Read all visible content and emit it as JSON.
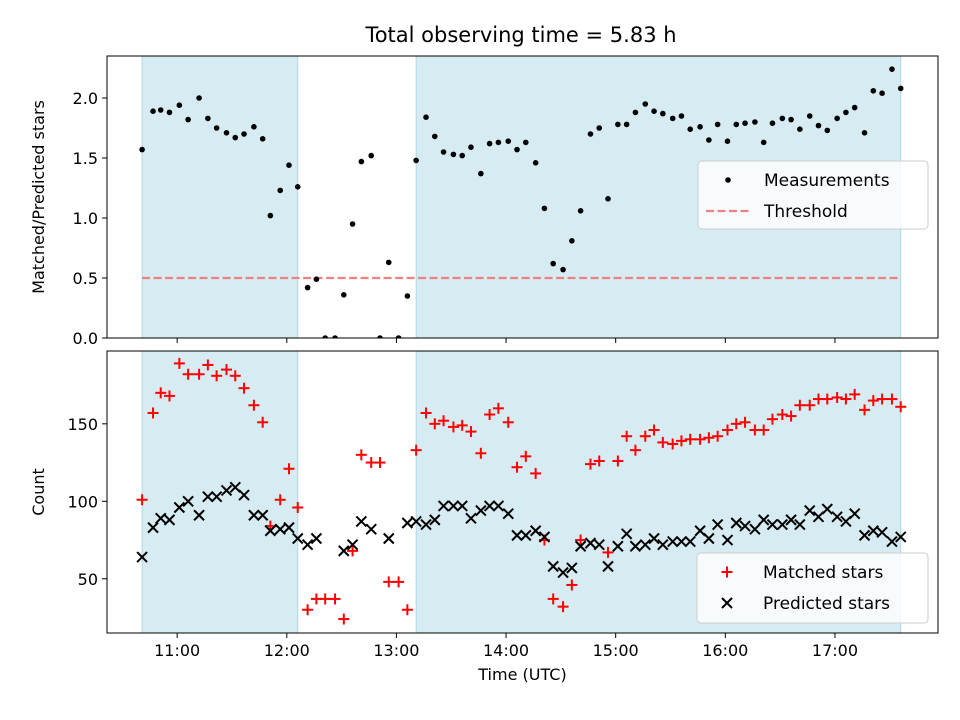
{
  "title": "Total observing time = 5.83 h",
  "colors": {
    "shade": "#add8e6",
    "measurement": "#000000",
    "threshold": "#f08080",
    "matched": "#ff0000",
    "predicted": "#000000"
  },
  "chart_data": [
    {
      "type": "scatter",
      "panel": "top",
      "xlabel": "",
      "ylabel": "Matched/Predicted stars",
      "xlim": [
        10.36,
        17.94
      ],
      "ylim": [
        0,
        2.35
      ],
      "yticks": [
        0.0,
        0.5,
        1.0,
        1.5,
        2.0
      ],
      "ytick_labels": [
        "0.0",
        "0.5",
        "1.0",
        "1.5",
        "2.0"
      ],
      "xticks": [
        11,
        12,
        13,
        14,
        15,
        16,
        17
      ],
      "shaded_intervals": [
        [
          10.68,
          12.1
        ],
        [
          13.18,
          17.6
        ]
      ],
      "threshold": 0.5,
      "threshold_x_range": [
        10.68,
        17.6
      ],
      "legend": {
        "position": "center-right",
        "entries": [
          {
            "label": "Measurements",
            "marker": "dot"
          },
          {
            "label": "Threshold",
            "marker": "dashed-line"
          }
        ]
      },
      "series": [
        {
          "name": "Measurements",
          "x": [
            10.68,
            10.78,
            10.85,
            10.93,
            11.02,
            11.1,
            11.2,
            11.28,
            11.36,
            11.45,
            11.53,
            11.61,
            11.7,
            11.78,
            11.85,
            11.94,
            12.02,
            12.1,
            12.19,
            12.27,
            12.35,
            12.44,
            12.52,
            12.6,
            12.68,
            12.77,
            12.85,
            12.93,
            13.02,
            13.1,
            13.18,
            13.27,
            13.35,
            13.43,
            13.52,
            13.6,
            13.68,
            13.77,
            13.85,
            13.93,
            14.02,
            14.1,
            14.18,
            14.27,
            14.35,
            14.43,
            14.52,
            14.6,
            14.68,
            14.77,
            14.85,
            14.93,
            15.02,
            15.1,
            15.18,
            15.27,
            15.35,
            15.43,
            15.52,
            15.6,
            15.68,
            15.77,
            15.85,
            15.93,
            16.02,
            16.1,
            16.18,
            16.27,
            16.35,
            16.43,
            16.52,
            16.6,
            16.68,
            16.77,
            16.85,
            16.93,
            17.02,
            17.1,
            17.18,
            17.27,
            17.35,
            17.43,
            17.52,
            17.6
          ],
          "y": [
            1.57,
            1.89,
            1.9,
            1.88,
            1.94,
            1.82,
            2.0,
            1.83,
            1.75,
            1.71,
            1.67,
            1.7,
            1.76,
            1.66,
            1.02,
            1.23,
            1.44,
            1.26,
            0.42,
            0.49,
            0.0,
            0.0,
            0.36,
            0.95,
            1.47,
            1.52,
            0.0,
            0.63,
            0.0,
            0.35,
            1.48,
            1.84,
            1.68,
            1.55,
            1.53,
            1.52,
            1.59,
            1.37,
            1.62,
            1.63,
            1.64,
            1.57,
            1.63,
            1.46,
            1.08,
            0.62,
            0.57,
            0.81,
            1.06,
            1.7,
            1.75,
            1.16,
            1.78,
            1.78,
            1.88,
            1.95,
            1.89,
            1.87,
            1.83,
            1.85,
            1.74,
            1.76,
            1.65,
            1.78,
            1.64,
            1.78,
            1.79,
            1.8,
            1.63,
            1.79,
            1.83,
            1.82,
            1.74,
            1.85,
            1.77,
            1.73,
            1.83,
            1.88,
            1.92,
            1.71,
            2.06,
            2.04,
            2.24,
            2.08
          ]
        }
      ]
    },
    {
      "type": "scatter",
      "panel": "bottom",
      "xlabel": "Time (UTC)",
      "ylabel": "Count",
      "xlim": [
        10.36,
        17.94
      ],
      "ylim": [
        15,
        197
      ],
      "yticks": [
        50,
        100,
        150
      ],
      "ytick_labels": [
        "50",
        "100",
        "150"
      ],
      "xticks": [
        11,
        12,
        13,
        14,
        15,
        16,
        17
      ],
      "xtick_labels": [
        "11:00",
        "12:00",
        "13:00",
        "14:00",
        "15:00",
        "16:00",
        "17:00"
      ],
      "shaded_intervals": [
        [
          10.68,
          12.1
        ],
        [
          13.18,
          17.6
        ]
      ],
      "legend": {
        "position": "bottom-right",
        "entries": [
          {
            "label": "Matched stars",
            "marker": "plus"
          },
          {
            "label": "Predicted stars",
            "marker": "x"
          }
        ]
      },
      "series": [
        {
          "name": "Matched stars",
          "x": [
            10.68,
            10.78,
            10.85,
            10.93,
            11.02,
            11.1,
            11.2,
            11.28,
            11.36,
            11.45,
            11.53,
            11.61,
            11.7,
            11.78,
            11.85,
            11.94,
            12.02,
            12.1,
            12.19,
            12.27,
            12.35,
            12.44,
            12.52,
            12.6,
            12.68,
            12.77,
            12.85,
            12.93,
            13.02,
            13.1,
            13.18,
            13.27,
            13.35,
            13.43,
            13.52,
            13.6,
            13.68,
            13.77,
            13.85,
            13.93,
            14.02,
            14.1,
            14.18,
            14.27,
            14.35,
            14.43,
            14.52,
            14.6,
            14.68,
            14.77,
            14.85,
            14.93,
            15.02,
            15.1,
            15.18,
            15.27,
            15.35,
            15.43,
            15.52,
            15.6,
            15.68,
            15.77,
            15.85,
            15.93,
            16.02,
            16.1,
            16.18,
            16.27,
            16.35,
            16.43,
            16.52,
            16.6,
            16.68,
            16.77,
            16.85,
            16.93,
            17.02,
            17.1,
            17.18,
            17.27,
            17.35,
            17.43,
            17.52,
            17.6
          ],
          "y": [
            101,
            157,
            170,
            168,
            189,
            182,
            182,
            188,
            181,
            185,
            181,
            173,
            162,
            151,
            84,
            101,
            121,
            96,
            30,
            37,
            37,
            37,
            24,
            68,
            130,
            125,
            125,
            48,
            48,
            30,
            133,
            157,
            150,
            152,
            148,
            149,
            145,
            131,
            156,
            160,
            151,
            122,
            129,
            118,
            75,
            37,
            32,
            46,
            75,
            124,
            126,
            67,
            126,
            142,
            133,
            142,
            146,
            138,
            137,
            139,
            140,
            140,
            141,
            142,
            146,
            150,
            151,
            146,
            146,
            153,
            156,
            155,
            162,
            162,
            166,
            166,
            167,
            166,
            169,
            159,
            165,
            166,
            166,
            161
          ]
        },
        {
          "name": "Predicted stars",
          "x": [
            10.68,
            10.78,
            10.85,
            10.93,
            11.02,
            11.1,
            11.2,
            11.28,
            11.36,
            11.45,
            11.53,
            11.61,
            11.7,
            11.78,
            11.85,
            11.94,
            12.02,
            12.1,
            12.19,
            12.27,
            12.52,
            12.6,
            12.68,
            12.77,
            12.93,
            13.1,
            13.18,
            13.27,
            13.35,
            13.43,
            13.52,
            13.6,
            13.68,
            13.77,
            13.85,
            13.93,
            14.02,
            14.1,
            14.18,
            14.27,
            14.35,
            14.43,
            14.52,
            14.6,
            14.68,
            14.77,
            14.85,
            14.93,
            15.02,
            15.1,
            15.18,
            15.27,
            15.35,
            15.43,
            15.52,
            15.6,
            15.68,
            15.77,
            15.85,
            15.93,
            16.02,
            16.1,
            16.18,
            16.27,
            16.35,
            16.43,
            16.52,
            16.6,
            16.68,
            16.77,
            16.85,
            16.93,
            17.02,
            17.1,
            17.18,
            17.27,
            17.35,
            17.43,
            17.52,
            17.6
          ],
          "y": [
            64,
            83,
            89,
            88,
            96,
            100,
            91,
            103,
            103,
            107,
            109,
            104,
            91,
            91,
            81,
            82,
            83,
            76,
            72,
            76,
            68,
            72,
            87,
            82,
            76,
            86,
            87,
            85,
            88,
            97,
            97,
            97,
            89,
            94,
            97,
            97,
            92,
            78,
            78,
            81,
            77,
            58,
            54,
            57,
            71,
            73,
            72,
            58,
            71,
            79,
            71,
            72,
            76,
            72,
            74,
            74,
            74,
            81,
            76,
            85,
            75,
            86,
            84,
            82,
            88,
            85,
            85,
            88,
            85,
            94,
            90,
            95,
            90,
            87,
            92,
            78,
            81,
            80,
            74,
            77
          ]
        }
      ]
    }
  ]
}
